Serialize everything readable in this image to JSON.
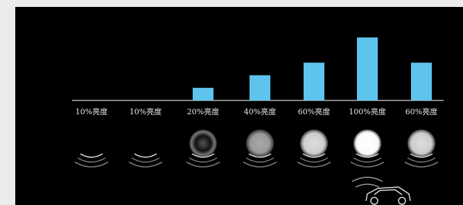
{
  "chart_data": {
    "type": "bar",
    "categories": [
      "10%亮度",
      "10%亮度",
      "20%亮度",
      "40%亮度",
      "60%亮度",
      "100%亮度",
      "60%亮度"
    ],
    "values": [
      null,
      null,
      20,
      40,
      60,
      100,
      60
    ],
    "color": "#5ec4ee",
    "ylim": [
      0,
      110
    ]
  }
}
